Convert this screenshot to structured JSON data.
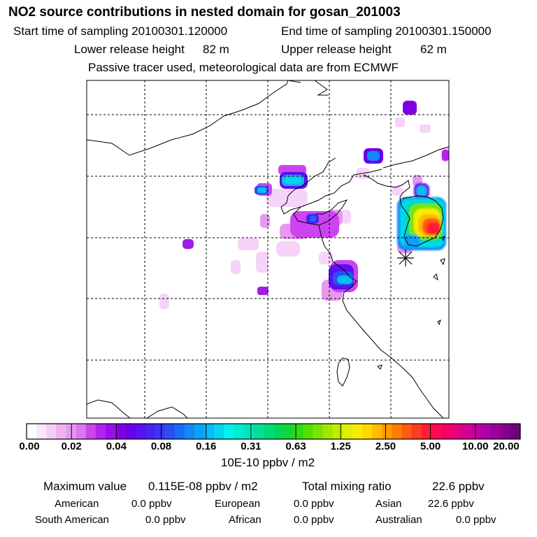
{
  "header": {
    "title": "NO2 source contributions in nested domain for gosan_201003",
    "start_label": "Start time of sampling 20100301.120000",
    "end_label": "End time of sampling 20100301.150000",
    "lower_label": "Lower release height",
    "lower_value": "82 m",
    "upper_label": "Upper release height",
    "upper_value": "62 m",
    "note": "Passive tracer used, meteorological data are from ECMWF"
  },
  "legend": {
    "ticks": [
      "0.00",
      "0.02",
      "0.04",
      "0.08",
      "0.16",
      "0.31",
      "0.63",
      "1.25",
      "2.50",
      "5.00",
      "10.00",
      "20.00"
    ],
    "units": "10E-10 ppbv / m2",
    "colors": [
      "#ffffff",
      "#fbe6fb",
      "#f5ccf7",
      "#eeb2f3",
      "#e799ef",
      "#dd77f0",
      "#cc44f0",
      "#b522ee",
      "#9b10ea",
      "#8000e6",
      "#6a00ea",
      "#5a10f0",
      "#4a22f2",
      "#3a38f2",
      "#2a50f4",
      "#1a6cf6",
      "#1088f8",
      "#0aa2f8",
      "#06bcf4",
      "#04d6ee",
      "#00f2ee",
      "#00ecd2",
      "#00e6b6",
      "#00e09a",
      "#00da7a",
      "#00d85a",
      "#10d838",
      "#30dc18",
      "#52e000",
      "#7ae400",
      "#a0e800",
      "#c2ec00",
      "#e0f000",
      "#f6ee00",
      "#ffd800",
      "#ffbc00",
      "#ff9c00",
      "#ff7c00",
      "#ff5a10",
      "#ff3a22",
      "#ff1e36",
      "#ff0a4e",
      "#f20068",
      "#e4007e",
      "#d40092",
      "#c200a0",
      "#ae00a4",
      "#9a009e",
      "#86008e",
      "#70007a"
    ]
  },
  "stats": {
    "max_label": "Maximum value",
    "max_value": "0.115E-08 ppbv / m2",
    "total_label": "Total mixing ratio",
    "total_value": "22.6 ppbv",
    "american_label": "American",
    "american_value": "0.0 ppbv",
    "european_label": "European",
    "european_value": "0.0 ppbv",
    "asian_label": "Asian",
    "asian_value": "22.6 ppbv",
    "south_american_label": "South American",
    "south_american_value": "0.0 ppbv",
    "african_label": "African",
    "african_value": "0.0 ppbv",
    "australian_label": "Australian",
    "australian_value": "0.0 ppbv"
  },
  "colors": {
    "frame": "#000000",
    "grid": "#000000",
    "coast": "#000000"
  }
}
